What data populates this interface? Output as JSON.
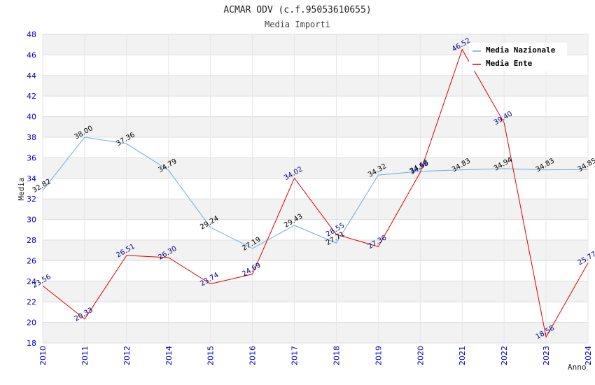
{
  "chart_data": {
    "type": "line",
    "title": "ACMAR ODV (c.f.95053610655)",
    "subtitle": "Media Importi",
    "xlabel": "Anno",
    "ylabel": "Media",
    "ylim": [
      18,
      48
    ],
    "yticks": [
      "18",
      "20",
      "22",
      "24",
      "26",
      "28",
      "30",
      "32",
      "34",
      "36",
      "38",
      "40",
      "42",
      "44",
      "46",
      "48"
    ],
    "categories": [
      "2010",
      "2011",
      "2012",
      "2014",
      "2015",
      "2016",
      "2017",
      "2018",
      "2019",
      "2020",
      "2021",
      "2022",
      "2023",
      "2024"
    ],
    "legend_position": "top-right",
    "series": [
      {
        "name": "Media Nazionale",
        "color": "#6aaae6",
        "values": [
          32.82,
          38.0,
          37.36,
          34.79,
          29.24,
          27.19,
          29.43,
          27.71,
          34.32,
          34.68,
          34.83,
          34.94,
          34.83,
          34.85
        ],
        "labels": [
          "32.82",
          "38.00",
          "37.36",
          "34.79",
          "29.24",
          "27.19",
          "29.43",
          "27.71",
          "34.32",
          "34.68",
          "34.83",
          "34.94",
          "34.83",
          "34.85"
        ]
      },
      {
        "name": "Media Ente",
        "color": "#e00000",
        "values": [
          23.56,
          20.33,
          26.51,
          26.3,
          23.74,
          24.69,
          34.02,
          28.55,
          27.36,
          34.58,
          46.52,
          39.4,
          18.58,
          25.77
        ],
        "labels": [
          "23.56",
          "20.33",
          "26.51",
          "26.30",
          "23.74",
          "24.69",
          "34.02",
          "28.55",
          "27.36",
          "34.58",
          "46.52",
          "39.40",
          "18.58",
          "25.77"
        ]
      }
    ]
  }
}
